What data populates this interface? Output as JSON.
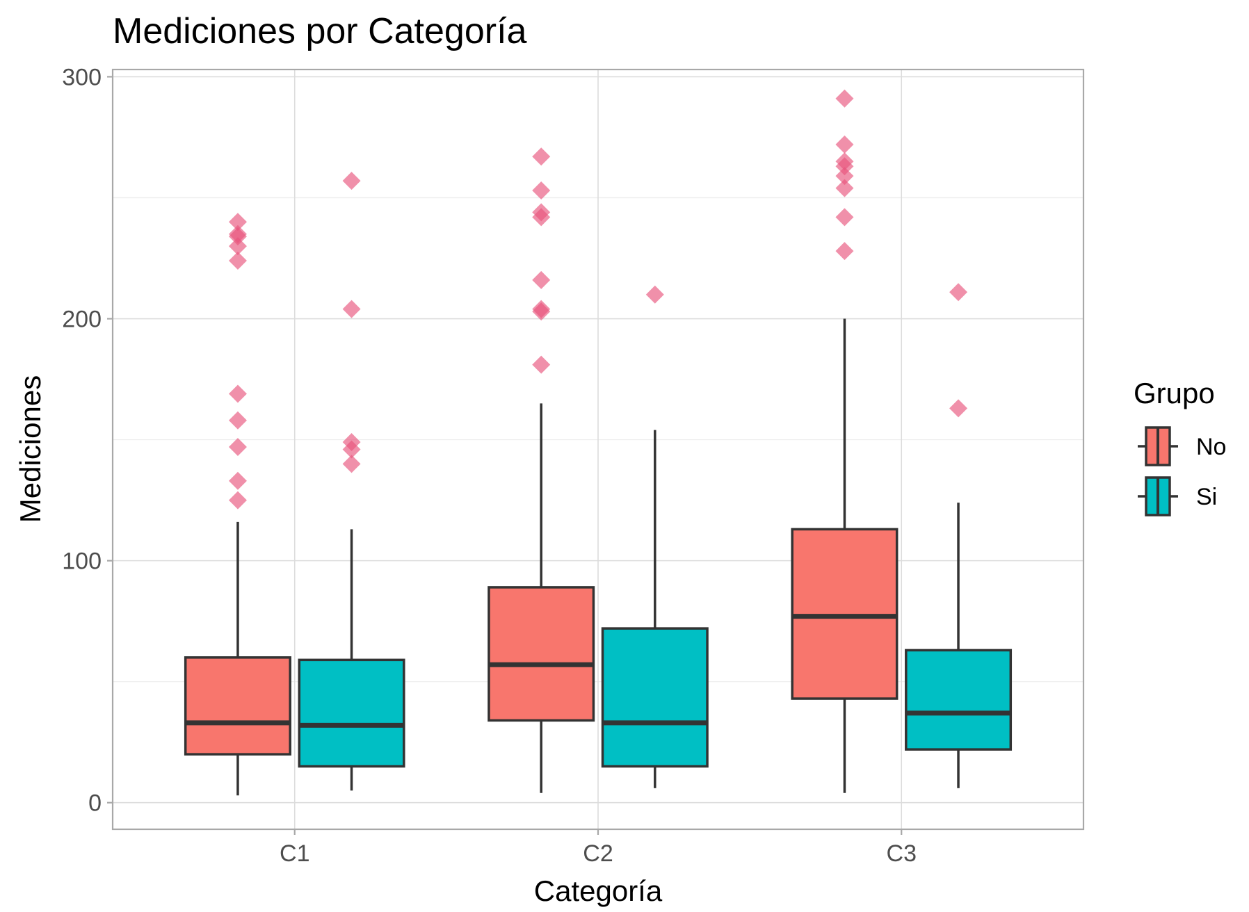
{
  "chart_data": {
    "type": "boxplot",
    "title": "Mediciones por Categoría",
    "xlabel": "Categoría",
    "ylabel": "Mediciones",
    "categories": [
      "C1",
      "C2",
      "C3"
    ],
    "ylim": [
      -11,
      303
    ],
    "yticks": [
      0,
      100,
      200,
      300
    ],
    "grid": true,
    "legend": {
      "title": "Grupo",
      "position": "right"
    },
    "series": [
      {
        "name": "No",
        "color": "#F8766D",
        "boxes": [
          {
            "category": "C1",
            "whisker_low": 3,
            "q1": 20,
            "median": 33,
            "q3": 60,
            "whisker_high": 116,
            "outliers": [
              125,
              133,
              147,
              158,
              169,
              224,
              230,
              234,
              235,
              240
            ]
          },
          {
            "category": "C2",
            "whisker_low": 4,
            "q1": 34,
            "median": 57,
            "q3": 89,
            "whisker_high": 165,
            "outliers": [
              181,
              203,
              204,
              216,
              242,
              244,
              253,
              267
            ]
          },
          {
            "category": "C3",
            "whisker_low": 4,
            "q1": 43,
            "median": 77,
            "q3": 113,
            "whisker_high": 200,
            "outliers": [
              228,
              242,
              254,
              259,
              263,
              265,
              272,
              291
            ]
          }
        ]
      },
      {
        "name": "Si",
        "color": "#00BFC4",
        "boxes": [
          {
            "category": "C1",
            "whisker_low": 5,
            "q1": 15,
            "median": 32,
            "q3": 59,
            "whisker_high": 113,
            "outliers": [
              140,
              146,
              149,
              204,
              257
            ]
          },
          {
            "category": "C2",
            "whisker_low": 6,
            "q1": 15,
            "median": 33,
            "q3": 72,
            "whisker_high": 154,
            "outliers": [
              210
            ]
          },
          {
            "category": "C3",
            "whisker_low": 6,
            "q1": 22,
            "median": 37,
            "q3": 63,
            "whisker_high": 124,
            "outliers": [
              163,
              211
            ]
          }
        ]
      }
    ],
    "outlier_color": "#E8557D"
  }
}
